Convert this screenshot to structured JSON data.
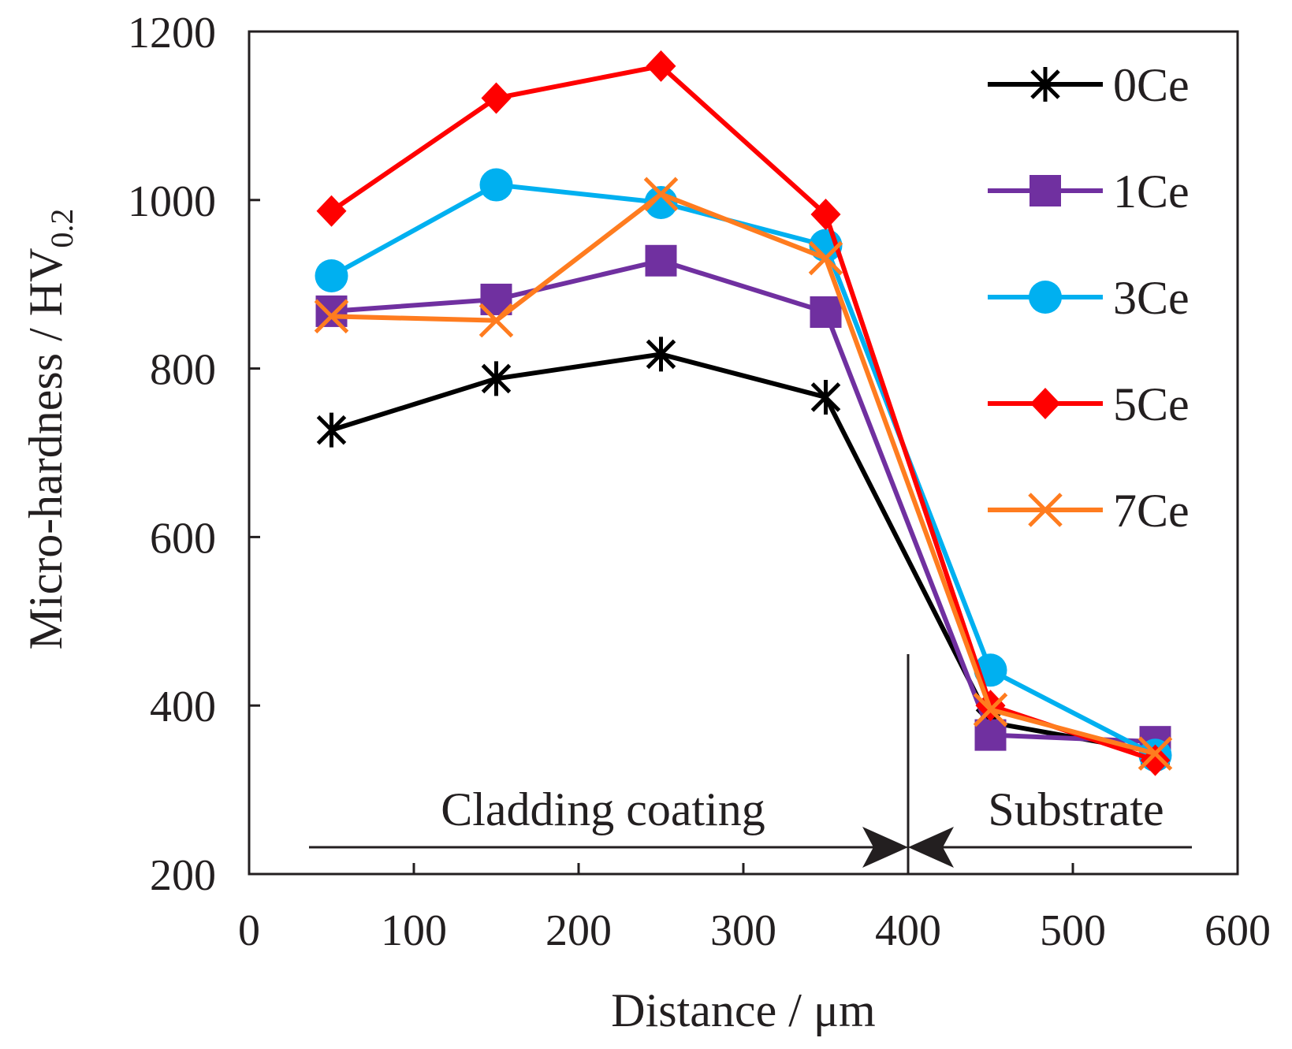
{
  "chart_data": {
    "type": "line",
    "xlabel": "Distance / μm",
    "ylabel": {
      "main": "Micro-hardness / HV",
      "subscript": "0.2"
    },
    "xlim": [
      0,
      600
    ],
    "ylim": [
      200,
      1200
    ],
    "xticks": [
      0,
      100,
      200,
      300,
      400,
      500,
      600
    ],
    "yticks": [
      200,
      400,
      600,
      800,
      1000,
      1200
    ],
    "grid": false,
    "legend_position": "top-right",
    "x": [
      50,
      150,
      250,
      350,
      450,
      550
    ],
    "series": [
      {
        "name": "0Ce",
        "color": "#000000",
        "marker": "asterisk",
        "values": [
          727,
          788,
          817,
          766,
          380,
          345
        ]
      },
      {
        "name": "1Ce",
        "color": "#7030a0",
        "marker": "square",
        "values": [
          868,
          882,
          928,
          867,
          365,
          357
        ]
      },
      {
        "name": "3Ce",
        "color": "#00b0f0",
        "marker": "circle",
        "values": [
          910,
          1018,
          997,
          946,
          442,
          341
        ]
      },
      {
        "name": "5Ce",
        "color": "#ff0000",
        "marker": "diamond",
        "values": [
          987,
          1121,
          1159,
          983,
          400,
          335
        ]
      },
      {
        "name": "7Ce",
        "color": "#ff7c1f",
        "marker": "x",
        "values": [
          862,
          857,
          1007,
          931,
          395,
          343
        ]
      }
    ],
    "annotations": {
      "boundary_x": 400,
      "left_region": "Cladding coating",
      "right_region": "Substrate",
      "line_color": "#231f20"
    }
  }
}
